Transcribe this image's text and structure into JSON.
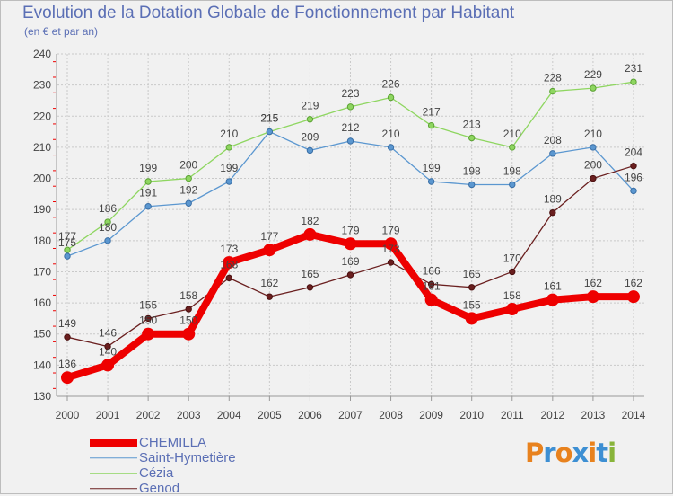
{
  "header": {
    "title": "Evolution de la Dotation Globale de Fonctionnement par Habitant",
    "subtitle": "(en € et par an)"
  },
  "logo": {
    "text": "Proxiti",
    "letter_colors": [
      "#e8821e",
      "#3d8fd3",
      "#e8821e",
      "#3d8fd3",
      "#e8821e",
      "#3d8fd3",
      "#88b43a"
    ]
  },
  "chart_data": {
    "type": "line",
    "title": "Evolution de la Dotation Globale de Fonctionnement par Habitant",
    "subtitle": "(en € et par an)",
    "xlabel": "",
    "ylabel": "",
    "categories": [
      "2000",
      "2001",
      "2002",
      "2003",
      "2004",
      "2005",
      "2006",
      "2007",
      "2008",
      "2009",
      "2010",
      "2011",
      "2012",
      "2013",
      "2014"
    ],
    "ylim": [
      130,
      240
    ],
    "yticks": [
      130,
      140,
      150,
      160,
      170,
      180,
      190,
      200,
      210,
      220,
      230,
      240
    ],
    "grid": true,
    "legend_position": "bottom-left",
    "series": [
      {
        "name": "CHEMILLA",
        "color": "#ee0000",
        "values": [
          136,
          140,
          150,
          150,
          173,
          177,
          182,
          179,
          179,
          161,
          155,
          158,
          161,
          162,
          162
        ],
        "labels": [
          "136",
          "140",
          "150",
          "150",
          "173",
          "177",
          "182",
          "179",
          "179",
          "161",
          "155",
          "158",
          "161",
          "162",
          "162"
        ]
      },
      {
        "name": "Saint-Hymetière",
        "color": "#5b97d0",
        "values": [
          175,
          180,
          191,
          192,
          199,
          215,
          209,
          212,
          210,
          199,
          198,
          198,
          208,
          210,
          196
        ],
        "labels": [
          "175",
          "180",
          "191",
          "192",
          "199",
          "215",
          "209",
          "212",
          "210",
          "199",
          "198",
          "198",
          "208",
          "210",
          "196"
        ]
      },
      {
        "name": "Cézia",
        "color": "#8ed660",
        "values": [
          177,
          186,
          199,
          200,
          210,
          215,
          219,
          223,
          226,
          217,
          213,
          210,
          228,
          229,
          231
        ],
        "labels": [
          "177",
          "186",
          "199",
          "200",
          "210",
          "215",
          "219",
          "223",
          "226",
          "217",
          "213",
          "210",
          "228",
          "229",
          "231"
        ]
      },
      {
        "name": "Genod",
        "color": "#6a1f1f",
        "values": [
          149,
          146,
          155,
          158,
          168,
          162,
          165,
          169,
          173,
          166,
          165,
          170,
          189,
          200,
          204
        ],
        "labels": [
          "149",
          "146",
          "155",
          "158",
          "168",
          "162",
          "165",
          "169",
          "173",
          "166",
          "165",
          "170",
          "189",
          "200",
          "204"
        ]
      }
    ]
  }
}
